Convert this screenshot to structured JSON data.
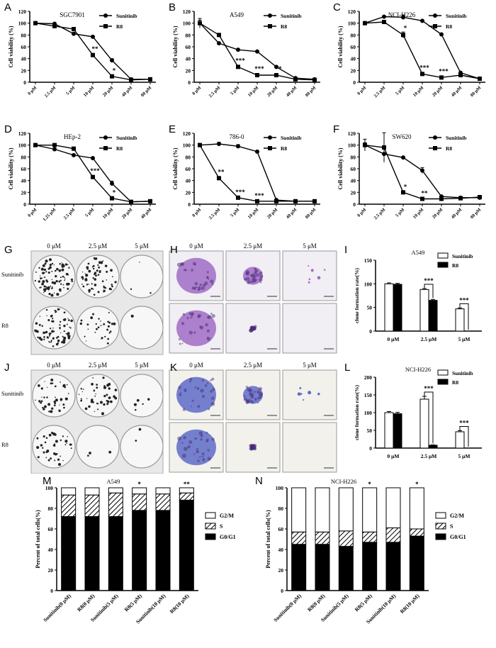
{
  "panel_letters": [
    "A",
    "B",
    "C",
    "D",
    "E",
    "F",
    "G",
    "H",
    "I",
    "J",
    "K",
    "L",
    "M",
    "N"
  ],
  "chart_data": [
    {
      "id": "A",
      "type": "line",
      "title": "SGC7901",
      "ylabel": "Cell viability (%)",
      "ylim": [
        0,
        120
      ],
      "yticks": [
        0,
        20,
        40,
        60,
        80,
        100,
        120
      ],
      "categories": [
        "0 μM",
        "2.5 μM",
        "5 μM",
        "10 μM",
        "20 μM",
        "40 μM",
        "80 μM"
      ],
      "series": [
        {
          "name": "Sunitinib",
          "marker": "circle",
          "values": [
            100,
            99,
            82,
            77,
            37,
            5,
            5
          ],
          "errors": [
            1,
            1,
            1,
            1,
            3,
            1,
            1
          ]
        },
        {
          "name": "R8",
          "marker": "square",
          "values": [
            100,
            95,
            90,
            46,
            10,
            4,
            5
          ],
          "errors": [
            1,
            1,
            1,
            2,
            1,
            1,
            1
          ]
        }
      ],
      "annotations": [
        {
          "x": 3,
          "y": 53,
          "text": "**"
        },
        {
          "x": 4,
          "y": 16,
          "text": "*"
        }
      ]
    },
    {
      "id": "B",
      "type": "line",
      "title": "A549",
      "ylabel": "Cell viability (%)",
      "ylim": [
        0,
        120
      ],
      "yticks": [
        0,
        20,
        40,
        60,
        80,
        100,
        120
      ],
      "categories": [
        "0 μM",
        "2.5 μM",
        "5 μM",
        "10 μM",
        "20 μM",
        "40 μM",
        "80 μM"
      ],
      "series": [
        {
          "name": "Sunitinib",
          "marker": "circle",
          "values": [
            100,
            66,
            55,
            52,
            26,
            7,
            5
          ],
          "errors": [
            8,
            1,
            1,
            1,
            1,
            1,
            1
          ]
        },
        {
          "name": "R8",
          "marker": "square",
          "values": [
            100,
            80,
            26,
            12,
            12,
            5,
            4
          ],
          "errors": [
            5,
            2,
            1,
            1,
            1,
            1,
            1
          ]
        }
      ],
      "annotations": [
        {
          "x": 2,
          "y": 33,
          "text": "***"
        },
        {
          "x": 3,
          "y": 19,
          "text": "***"
        },
        {
          "x": 4,
          "y": 19,
          "text": "**"
        }
      ]
    },
    {
      "id": "C",
      "type": "line",
      "title": "NCI-H226",
      "ylabel": "Cell viability (%)",
      "ylim": [
        0,
        120
      ],
      "yticks": [
        0,
        20,
        40,
        60,
        80,
        100,
        120
      ],
      "categories": [
        "0 μM",
        "2.5 μM",
        "5 μM",
        "10 μM",
        "20 μM",
        "40 μM",
        "80 μM"
      ],
      "series": [
        {
          "name": "Sunitinib",
          "marker": "circle",
          "values": [
            100,
            111,
            110,
            104,
            81,
            16,
            6
          ],
          "errors": [
            1,
            1,
            4,
            1,
            1,
            1,
            1
          ]
        },
        {
          "name": "R8",
          "marker": "square",
          "values": [
            100,
            102,
            80,
            14,
            8,
            12,
            6
          ],
          "errors": [
            1,
            2,
            5,
            1,
            1,
            1,
            1
          ]
        }
      ],
      "annotations": [
        {
          "x": 2,
          "y": 88,
          "text": "*"
        },
        {
          "x": 3,
          "y": 21,
          "text": "***"
        },
        {
          "x": 4,
          "y": 15,
          "text": "***"
        }
      ]
    },
    {
      "id": "D",
      "type": "line",
      "title": "HEp-2",
      "ylabel": "Cell viability (%)",
      "ylim": [
        0,
        120
      ],
      "yticks": [
        0,
        20,
        40,
        60,
        80,
        100,
        120
      ],
      "categories": [
        "0 μM",
        "1.25 μM",
        "2.5 μM",
        "5 μM",
        "10 μM",
        "20 μM",
        "40 μM"
      ],
      "series": [
        {
          "name": "Sunitinib",
          "marker": "circle",
          "values": [
            100,
            93,
            83,
            78,
            35,
            4,
            5
          ],
          "errors": [
            1,
            1,
            1,
            1,
            4,
            1,
            1
          ]
        },
        {
          "name": "R8",
          "marker": "square",
          "values": [
            100,
            100,
            94,
            46,
            10,
            4,
            5
          ],
          "errors": [
            1,
            1,
            1,
            2,
            1,
            1,
            1
          ]
        }
      ],
      "annotations": [
        {
          "x": 3,
          "y": 53,
          "text": "***"
        },
        {
          "x": 4,
          "y": 16,
          "text": "*"
        }
      ]
    },
    {
      "id": "E",
      "type": "line",
      "title": "786-0",
      "ylabel": "Cell viability (%)",
      "ylim": [
        0,
        120
      ],
      "yticks": [
        0,
        20,
        40,
        60,
        80,
        100,
        120
      ],
      "categories": [
        "0 μM",
        "2.5 μM",
        "5 μM",
        "10 μM",
        "20 μM",
        "40 μM",
        "80 μM"
      ],
      "series": [
        {
          "name": "Sunitinib",
          "marker": "circle",
          "values": [
            100,
            102,
            98,
            89,
            7,
            5,
            5
          ],
          "errors": [
            3,
            3,
            3,
            1,
            1,
            1,
            1
          ]
        },
        {
          "name": "R8",
          "marker": "square",
          "values": [
            100,
            44,
            11,
            5,
            5,
            5,
            5
          ],
          "errors": [
            1,
            1,
            1,
            1,
            1,
            1,
            1
          ]
        }
      ],
      "annotations": [
        {
          "x": 1,
          "y": 51,
          "text": "**"
        },
        {
          "x": 2,
          "y": 17,
          "text": "***"
        },
        {
          "x": 3,
          "y": 11,
          "text": "***"
        }
      ]
    },
    {
      "id": "F",
      "type": "line",
      "title": "SW620",
      "ylabel": "Cell viability (%)",
      "ylim": [
        0,
        120
      ],
      "yticks": [
        0,
        20,
        40,
        60,
        80,
        100,
        120
      ],
      "categories": [
        "0 μM",
        "2.5 μM",
        "5 μM",
        "10 μM",
        "20 μM",
        "40 μM",
        "80 μM"
      ],
      "series": [
        {
          "name": "Sunitinib",
          "marker": "circle",
          "values": [
            100,
            85,
            79,
            57,
            13,
            11,
            11
          ],
          "errors": [
            10,
            1,
            1,
            5,
            1,
            1,
            1
          ]
        },
        {
          "name": "R8",
          "marker": "square",
          "values": [
            100,
            96,
            20,
            9,
            9,
            10,
            12
          ],
          "errors": [
            4,
            25,
            1,
            1,
            1,
            1,
            1
          ]
        }
      ],
      "annotations": [
        {
          "x": 2,
          "y": 26,
          "text": "*"
        },
        {
          "x": 3,
          "y": 15,
          "text": "**"
        }
      ]
    },
    {
      "id": "I",
      "type": "bar",
      "title": "A549",
      "ylabel": "clone formation rate(%)",
      "ylim": [
        0,
        150
      ],
      "yticks": [
        0,
        50,
        100,
        150
      ],
      "categories": [
        "0 μM",
        "2.5 μM",
        "5 μM"
      ],
      "series": [
        {
          "name": "Sunitinib",
          "fill": "white",
          "values": [
            100,
            88,
            47
          ],
          "errors": [
            2,
            2,
            2
          ]
        },
        {
          "name": "R8",
          "fill": "black",
          "values": [
            99,
            65,
            0
          ],
          "errors": [
            2,
            2,
            0
          ]
        }
      ],
      "brackets": [
        {
          "cat": 1,
          "text": "***"
        },
        {
          "cat": 2,
          "text": "***"
        }
      ]
    },
    {
      "id": "L",
      "type": "bar",
      "title": "NCI-H226",
      "ylabel": "clone formation rate(%)",
      "ylim": [
        0,
        200
      ],
      "yticks": [
        0,
        50,
        100,
        150,
        200
      ],
      "categories": [
        "0 μM",
        "2.5 μM",
        "5 μM"
      ],
      "series": [
        {
          "name": "Sunitinib",
          "fill": "white",
          "values": [
            100,
            138,
            46
          ],
          "errors": [
            3,
            8,
            3
          ]
        },
        {
          "name": "R8",
          "fill": "black",
          "values": [
            97,
            8,
            0
          ],
          "errors": [
            4,
            1,
            0
          ]
        }
      ],
      "brackets": [
        {
          "cat": 1,
          "text": "***"
        },
        {
          "cat": 2,
          "text": "***"
        }
      ]
    },
    {
      "id": "M",
      "type": "bar",
      "stacked": true,
      "title": "A549",
      "ylabel": "Percent of total cells(%)",
      "ylim": [
        0,
        100
      ],
      "yticks": [
        0,
        20,
        40,
        60,
        80,
        100
      ],
      "categories": [
        "Sunitinib(0 μM)",
        "R8(0 μM)",
        "Sunitinib(5 μM)",
        "R8(5 μM)",
        "Sunitinib(10 μM)",
        "R8(10 μM)"
      ],
      "series": [
        {
          "name": "G0/G1",
          "fill": "black",
          "values": [
            72,
            72,
            72,
            78,
            78,
            88
          ]
        },
        {
          "name": "S",
          "fill": "hatch",
          "values": [
            21,
            21,
            23,
            16,
            16,
            7
          ]
        },
        {
          "name": "G2/M",
          "fill": "white",
          "values": [
            7,
            7,
            5,
            6,
            6,
            5
          ]
        }
      ],
      "legend_order": [
        "G2/M",
        "S",
        "G0/G1"
      ],
      "annotations": [
        {
          "cat": 3,
          "text": "*"
        },
        {
          "cat": 5,
          "text": "**"
        }
      ]
    },
    {
      "id": "N",
      "type": "bar",
      "stacked": true,
      "title": "NCI-H226",
      "ylabel": "Percent of total cells(%)",
      "ylim": [
        0,
        100
      ],
      "yticks": [
        0,
        20,
        40,
        60,
        80,
        100
      ],
      "categories": [
        "Sunitinib(0 μM)",
        "R8(0 μM)",
        "Sunitinib(5 μM)",
        "R8(5 μM)",
        "Sunitinib(10 μM)",
        "R8(10 μM)"
      ],
      "series": [
        {
          "name": "G0/G1",
          "fill": "black",
          "values": [
            45,
            45,
            43,
            47,
            47,
            53
          ]
        },
        {
          "name": "S",
          "fill": "hatch",
          "values": [
            12,
            12,
            15,
            10,
            14,
            7
          ]
        },
        {
          "name": "G2/M",
          "fill": "white",
          "values": [
            43,
            43,
            42,
            43,
            39,
            40
          ]
        }
      ],
      "legend_order": [
        "G2/M",
        "S",
        "G0/G1"
      ],
      "annotations": [
        {
          "cat": 3,
          "text": "*"
        },
        {
          "cat": 5,
          "text": "*"
        }
      ]
    }
  ],
  "plates": {
    "G": {
      "cols": [
        "0 μM",
        "2.5 μM",
        "5 μM"
      ],
      "rows": [
        "Sunitinib",
        "R8"
      ],
      "density": [
        [
          1,
          0.7,
          0.03
        ],
        [
          0.9,
          0.35,
          0.01
        ]
      ]
    },
    "J": {
      "cols": [
        "0 μM",
        "2.5 μM",
        "5 μM"
      ],
      "rows": [
        "Sunitinib",
        "R8"
      ],
      "density": [
        [
          0.45,
          0.5,
          0.05
        ],
        [
          0.45,
          0.03,
          0.02
        ]
      ]
    }
  },
  "micrographs": {
    "H": {
      "cols": [
        "0 μM",
        "2.5 μM",
        "5 μM"
      ],
      "color": "#a06cc4",
      "bg": "#f1eef4"
    },
    "K": {
      "cols": [
        "0 μM",
        "2.5 μM",
        "5 μM"
      ],
      "color": "#5e6cc8",
      "bg": "#f2f1ec"
    }
  }
}
